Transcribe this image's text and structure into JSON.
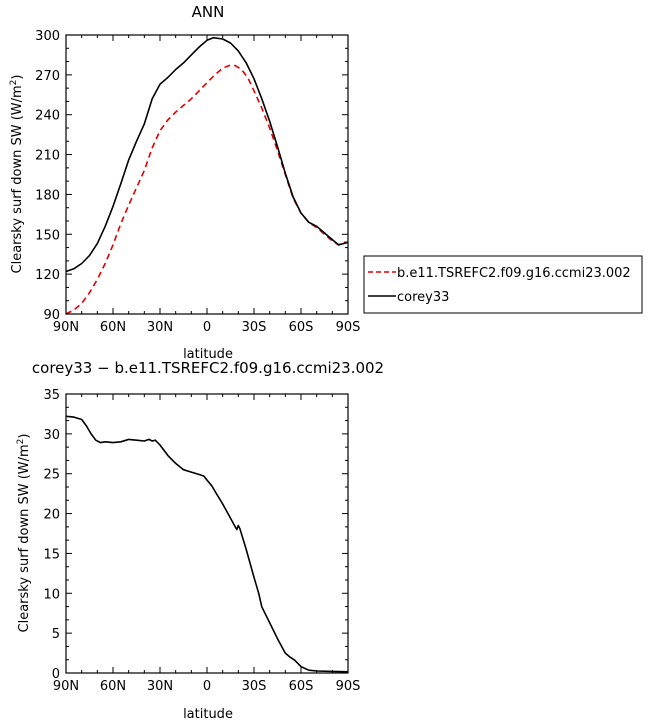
{
  "chart_data": [
    {
      "type": "line",
      "title": "ANN",
      "xlabel": "latitude",
      "ylabel": "Clearsky surf down SW (W/m²)",
      "ylabel_parts": {
        "main": "Clearsky surf down SW (W/m",
        "sup": "2",
        "tail": ")"
      },
      "x_axis_order": "north-to-south",
      "xlim": [
        90,
        -90
      ],
      "ylim": [
        90,
        300
      ],
      "xticks": [
        90,
        60,
        30,
        0,
        -30,
        -60,
        -90
      ],
      "xtick_labels": [
        "90N",
        "60N",
        "30N",
        "0",
        "30S",
        "60S",
        "90S"
      ],
      "yticks": [
        90,
        120,
        150,
        180,
        210,
        240,
        270,
        300
      ],
      "ytick_labels": [
        "90",
        "120",
        "150",
        "180",
        "210",
        "240",
        "270",
        "300"
      ],
      "legend_placement": "right",
      "series": [
        {
          "name": "b.e11.TSREFC2.f09.g16.ccmi23.002",
          "color": "#e00000",
          "dash": "dashed",
          "points": [
            [
              90,
              90
            ],
            [
              85,
              93
            ],
            [
              80,
              98
            ],
            [
              75,
              106
            ],
            [
              70,
              116
            ],
            [
              65,
              128
            ],
            [
              60,
              142
            ],
            [
              55,
              158
            ],
            [
              50,
              172
            ],
            [
              45,
              185
            ],
            [
              40,
              198
            ],
            [
              35,
              215
            ],
            [
              30,
              228
            ],
            [
              25,
              236
            ],
            [
              20,
              242
            ],
            [
              15,
              247
            ],
            [
              10,
              252
            ],
            [
              5,
              258
            ],
            [
              0,
              264
            ],
            [
              -5,
              270
            ],
            [
              -10,
              275
            ],
            [
              -14,
              277
            ],
            [
              -18,
              277
            ],
            [
              -22,
              274
            ],
            [
              -26,
              268
            ],
            [
              -30,
              258
            ],
            [
              -35,
              245
            ],
            [
              -40,
              230
            ],
            [
              -45,
              213
            ],
            [
              -50,
              195
            ],
            [
              -55,
              177
            ],
            [
              -60,
              166
            ],
            [
              -65,
              159
            ],
            [
              -70,
              155
            ],
            [
              -75,
              150
            ],
            [
              -80,
              145
            ],
            [
              -84,
              142
            ],
            [
              -87,
              144
            ],
            [
              -90,
              144
            ]
          ]
        },
        {
          "name": "corey33",
          "color": "#000000",
          "dash": "solid",
          "points": [
            [
              90,
              122
            ],
            [
              85,
              124
            ],
            [
              80,
              128
            ],
            [
              75,
              134
            ],
            [
              70,
              143
            ],
            [
              65,
              156
            ],
            [
              60,
              171
            ],
            [
              55,
              188
            ],
            [
              50,
              206
            ],
            [
              45,
              220
            ],
            [
              40,
              233
            ],
            [
              35,
              252
            ],
            [
              30,
              263
            ],
            [
              25,
              268
            ],
            [
              20,
              274
            ],
            [
              15,
              279
            ],
            [
              10,
              285
            ],
            [
              5,
              291
            ],
            [
              0,
              296
            ],
            [
              -4,
              298
            ],
            [
              -10,
              297
            ],
            [
              -15,
              294
            ],
            [
              -20,
              288
            ],
            [
              -25,
              279
            ],
            [
              -30,
              267
            ],
            [
              -35,
              252
            ],
            [
              -40,
              235
            ],
            [
              -45,
              216
            ],
            [
              -50,
              196
            ],
            [
              -55,
              178
            ],
            [
              -60,
              166
            ],
            [
              -65,
              159
            ],
            [
              -70,
              156
            ],
            [
              -75,
              151
            ],
            [
              -80,
              146
            ],
            [
              -84,
              142
            ],
            [
              -87,
              143
            ],
            [
              -90,
              144
            ]
          ]
        }
      ]
    },
    {
      "type": "line",
      "title": "corey33 − b.e11.TSREFC2.f09.g16.ccmi23.002",
      "xlabel": "latitude",
      "ylabel": "Clearsky surf down SW (W/m²)",
      "ylabel_parts": {
        "main": "Clearsky surf down SW (W/m",
        "sup": "2",
        "tail": ")"
      },
      "x_axis_order": "north-to-south",
      "xlim": [
        90,
        -90
      ],
      "ylim": [
        0,
        35
      ],
      "xticks": [
        90,
        60,
        30,
        0,
        -30,
        -60,
        -90
      ],
      "xtick_labels": [
        "90N",
        "60N",
        "30N",
        "0",
        "30S",
        "60S",
        "90S"
      ],
      "yticks": [
        0,
        5,
        10,
        15,
        20,
        25,
        30,
        35
      ],
      "ytick_labels": [
        "0",
        "5",
        "10",
        "15",
        "20",
        "25",
        "30",
        "35"
      ],
      "series": [
        {
          "color": "#000000",
          "dash": "solid",
          "points": [
            [
              90,
              32.2
            ],
            [
              85,
              32.1
            ],
            [
              80,
              31.8
            ],
            [
              77,
              31
            ],
            [
              74,
              30
            ],
            [
              71,
              29.2
            ],
            [
              68,
              28.9
            ],
            [
              65,
              29
            ],
            [
              60,
              28.9
            ],
            [
              55,
              29
            ],
            [
              50,
              29.3
            ],
            [
              45,
              29.2
            ],
            [
              40,
              29.1
            ],
            [
              37,
              29.3
            ],
            [
              35,
              29.1
            ],
            [
              33,
              29.2
            ],
            [
              30,
              28.6
            ],
            [
              25,
              27.3
            ],
            [
              20,
              26.3
            ],
            [
              15,
              25.5
            ],
            [
              10,
              25.2
            ],
            [
              5,
              24.9
            ],
            [
              2,
              24.7
            ],
            [
              0,
              24.2
            ],
            [
              -3,
              23.5
            ],
            [
              -6,
              22.5
            ],
            [
              -10,
              21.2
            ],
            [
              -14,
              19.8
            ],
            [
              -17,
              18.7
            ],
            [
              -19,
              18
            ],
            [
              -20,
              18.5
            ],
            [
              -21,
              18.1
            ],
            [
              -25,
              15.5
            ],
            [
              -30,
              12
            ],
            [
              -33,
              10
            ],
            [
              -35,
              8.3
            ],
            [
              -40,
              6.3
            ],
            [
              -45,
              4.3
            ],
            [
              -50,
              2.5
            ],
            [
              -53,
              2
            ],
            [
              -56,
              1.6
            ],
            [
              -60,
              0.8
            ],
            [
              -65,
              0.35
            ],
            [
              -70,
              0.25
            ],
            [
              -80,
              0.2
            ],
            [
              -90,
              0.15
            ]
          ]
        }
      ]
    }
  ]
}
